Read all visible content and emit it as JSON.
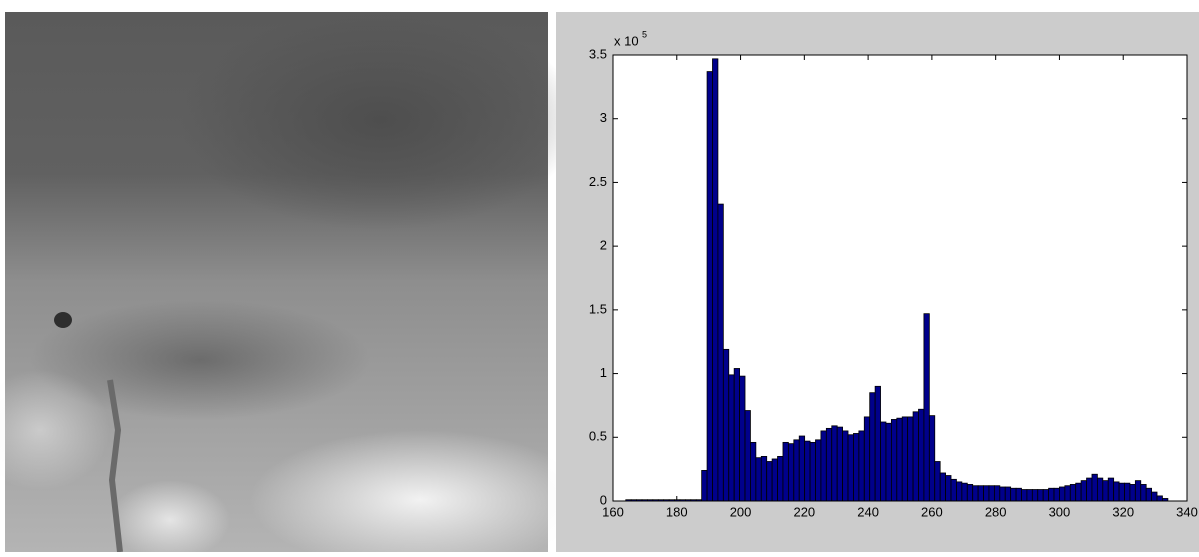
{
  "chart_data": {
    "type": "histogram",
    "y_multiplier": {
      "base": "x 10",
      "exponent": "5"
    },
    "bins": [
      164,
      165.7,
      167.4,
      169.1,
      170.8,
      172.5,
      174.2,
      175.9,
      177.6,
      179.3,
      181,
      182.7,
      184.4,
      186.1,
      187.8,
      189.5,
      191.2,
      192.9,
      194.6,
      196.3,
      198,
      199.7,
      201.4,
      203.1,
      204.8,
      206.5,
      208.2,
      209.9,
      211.6,
      213.3,
      215,
      216.7,
      218.4,
      220.1,
      221.8,
      223.5,
      225.2,
      226.9,
      228.6,
      230.3,
      232,
      233.7,
      235.4,
      237.1,
      238.8,
      240.5,
      242.2,
      243.9,
      245.6,
      247.3,
      249,
      250.7,
      252.4,
      254.1,
      255.8,
      257.5,
      259.2,
      260.9,
      262.6,
      264.3,
      266,
      267.7,
      269.4,
      271.1,
      272.8,
      274.5,
      276.2,
      277.9,
      279.6,
      281.3,
      283,
      284.7,
      286.4,
      288.1,
      289.8,
      291.5,
      293.2,
      294.9,
      296.6,
      298.3,
      300,
      301.7,
      303.4,
      305.1,
      306.8,
      308.5,
      310.2,
      311.9,
      313.6,
      315.3,
      317,
      318.7,
      320.4,
      322.1,
      323.8,
      325.5,
      327.2,
      328.9,
      330.6,
      332.3,
      334
    ],
    "values": [
      0.01,
      0.01,
      0.01,
      0.01,
      0.01,
      0.01,
      0.01,
      0.01,
      0.01,
      0.01,
      0.01,
      0.01,
      0.01,
      0.01,
      0.24,
      3.37,
      3.47,
      2.33,
      1.19,
      0.99,
      1.04,
      0.98,
      0.71,
      0.46,
      0.34,
      0.35,
      0.31,
      0.33,
      0.35,
      0.46,
      0.45,
      0.48,
      0.51,
      0.47,
      0.46,
      0.48,
      0.55,
      0.57,
      0.59,
      0.58,
      0.55,
      0.52,
      0.53,
      0.55,
      0.66,
      0.85,
      0.9,
      0.62,
      0.61,
      0.64,
      0.65,
      0.66,
      0.66,
      0.7,
      0.72,
      1.47,
      0.67,
      0.31,
      0.22,
      0.2,
      0.17,
      0.15,
      0.14,
      0.13,
      0.12,
      0.12,
      0.12,
      0.12,
      0.12,
      0.11,
      0.11,
      0.1,
      0.1,
      0.09,
      0.09,
      0.09,
      0.09,
      0.09,
      0.1,
      0.1,
      0.11,
      0.12,
      0.13,
      0.14,
      0.16,
      0.18,
      0.21,
      0.18,
      0.16,
      0.18,
      0.15,
      0.14,
      0.14,
      0.13,
      0.16,
      0.13,
      0.1,
      0.07,
      0.04,
      0.02
    ],
    "color": "#00008b",
    "xlim": [
      160,
      340
    ],
    "xticks": [
      160,
      180,
      200,
      220,
      240,
      260,
      280,
      300,
      320,
      340
    ],
    "ylim": [
      0,
      3.5
    ],
    "yticks": [
      0,
      0.5,
      1,
      1.5,
      2,
      2.5,
      3,
      3.5
    ]
  }
}
